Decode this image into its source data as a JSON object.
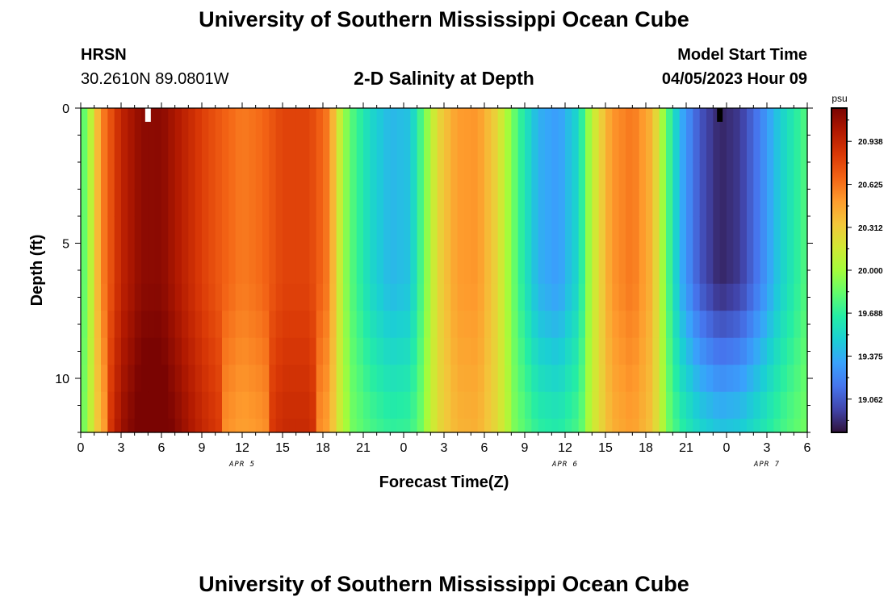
{
  "header": {
    "title": "University of Southern Mississippi Ocean Cube",
    "station_code": "HRSN",
    "station_coords": "30.2610N  89.0801W",
    "plot_title": "2-D Salinity at Depth",
    "model_start_label": "Model Start Time",
    "model_start_value": "04/05/2023 Hour 09"
  },
  "footer": {
    "title": "University of Southern Mississippi Ocean Cube"
  },
  "chart_data": {
    "type": "heatmap",
    "title": "2-D Salinity at Depth",
    "xlabel": "Forecast Time(Z)",
    "ylabel": "Depth (ft)",
    "x_tick_labels": [
      "0",
      "3",
      "6",
      "9",
      "12",
      "15",
      "18",
      "21",
      "0",
      "3",
      "6",
      "9",
      "12",
      "15",
      "18",
      "21",
      "0",
      "3",
      "6"
    ],
    "x_date_labels": [
      {
        "label": "APR 5",
        "at_hour": 12
      },
      {
        "label": "APR 6",
        "at_hour": 36
      },
      {
        "label": "APR 7",
        "at_hour": 51
      }
    ],
    "xlim_hours": [
      0,
      54
    ],
    "y_tick_labels": [
      "0",
      "5",
      "10"
    ],
    "ylim_ft": [
      0,
      12
    ],
    "y_reversed": true,
    "colorbar": {
      "unit": "psu",
      "tick_labels": [
        "19.062",
        "19.375",
        "19.688",
        "20.000",
        "20.312",
        "20.625",
        "20.938"
      ],
      "range": [
        18.82,
        21.18
      ],
      "colormap": [
        "#30123b",
        "#4145ab",
        "#4675ed",
        "#39a2fc",
        "#1bcfd4",
        "#24eca6",
        "#61fc6c",
        "#a4fc3b",
        "#d1e834",
        "#f3c63a",
        "#fe9b2d",
        "#f36315",
        "#d93806",
        "#b11901",
        "#7a0402"
      ]
    },
    "model_start_marker_hour": 5,
    "current_time_marker_hour": 47.5,
    "surface_salinity_profile": [
      {
        "hour": 0,
        "value": 19.72
      },
      {
        "hour": 0.7,
        "value": 20.05
      },
      {
        "hour": 1.5,
        "value": 20.55
      },
      {
        "hour": 3,
        "value": 20.95
      },
      {
        "hour": 4.5,
        "value": 21.12
      },
      {
        "hour": 6,
        "value": 21.13
      },
      {
        "hour": 7.5,
        "value": 20.98
      },
      {
        "hour": 9,
        "value": 20.82
      },
      {
        "hour": 10.5,
        "value": 20.7
      },
      {
        "hour": 12,
        "value": 20.6
      },
      {
        "hour": 13.5,
        "value": 20.66
      },
      {
        "hour": 15,
        "value": 20.8
      },
      {
        "hour": 17,
        "value": 20.8
      },
      {
        "hour": 18.4,
        "value": 20.6
      },
      {
        "hour": 19.2,
        "value": 20.15
      },
      {
        "hour": 20,
        "value": 19.82
      },
      {
        "hour": 21.5,
        "value": 19.55
      },
      {
        "hour": 23,
        "value": 19.4
      },
      {
        "hour": 24.5,
        "value": 19.45
      },
      {
        "hour": 25.5,
        "value": 19.85
      },
      {
        "hour": 26.5,
        "value": 20.25
      },
      {
        "hour": 28,
        "value": 20.5
      },
      {
        "hour": 29.5,
        "value": 20.52
      },
      {
        "hour": 31,
        "value": 20.25
      },
      {
        "hour": 32.5,
        "value": 19.75
      },
      {
        "hour": 34,
        "value": 19.38
      },
      {
        "hour": 35.5,
        "value": 19.3
      },
      {
        "hour": 37,
        "value": 19.55
      },
      {
        "hour": 38,
        "value": 20.1
      },
      {
        "hour": 39.5,
        "value": 20.52
      },
      {
        "hour": 41,
        "value": 20.62
      },
      {
        "hour": 42.5,
        "value": 20.4
      },
      {
        "hour": 43.5,
        "value": 19.85
      },
      {
        "hour": 44.5,
        "value": 19.4
      },
      {
        "hour": 46,
        "value": 19.05
      },
      {
        "hour": 47.5,
        "value": 18.88
      },
      {
        "hour": 49,
        "value": 18.95
      },
      {
        "hour": 50.5,
        "value": 19.2
      },
      {
        "hour": 52,
        "value": 19.5
      },
      {
        "hour": 54,
        "value": 19.8
      }
    ]
  }
}
